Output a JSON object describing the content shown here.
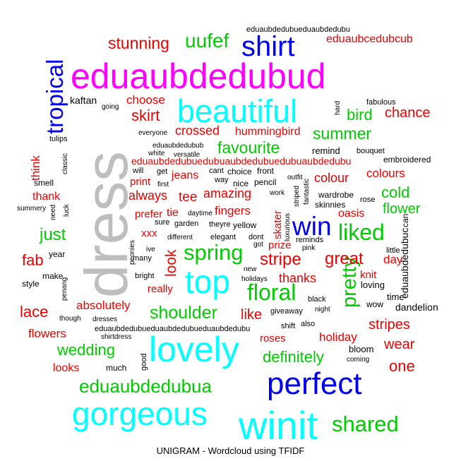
{
  "caption": "UNIGRAM - Wordcloud using TFIDF",
  "colors": {
    "gray": "#bebebe",
    "blue": "#0000ee",
    "magenta": "#ff00ff",
    "cyan": "#00ffff",
    "green": "#00cd00",
    "red": "#ee0000",
    "black": "#000000"
  },
  "chart_data": {
    "type": "wordcloud",
    "title": "UNIGRAM - Wordcloud using TFIDF",
    "words": [
      {
        "text": "dress",
        "tier": "xxl",
        "color": "gray"
      },
      {
        "text": "eduaubdedubud",
        "tier": "xl",
        "color": "magenta"
      },
      {
        "text": "winit",
        "tier": "xl",
        "color": "cyan"
      },
      {
        "text": "lovely",
        "tier": "xl",
        "color": "cyan"
      },
      {
        "text": "gorgeous",
        "tier": "xl",
        "color": "cyan"
      },
      {
        "text": "beautiful",
        "tier": "l",
        "color": "cyan"
      },
      {
        "text": "top",
        "tier": "l",
        "color": "cyan"
      },
      {
        "text": "perfect",
        "tier": "l",
        "color": "blue"
      },
      {
        "text": "win",
        "tier": "l",
        "color": "blue"
      },
      {
        "text": "shirt",
        "tier": "l",
        "color": "blue"
      },
      {
        "text": "tropical",
        "tier": "m",
        "color": "blue"
      },
      {
        "text": "liked",
        "tier": "m",
        "color": "green"
      },
      {
        "text": "floral",
        "tier": "m",
        "color": "green"
      },
      {
        "text": "spring",
        "tier": "m",
        "color": "green"
      },
      {
        "text": "shared",
        "tier": "m",
        "color": "green"
      },
      {
        "text": "eduaubdedubua",
        "tier": "m",
        "color": "green"
      },
      {
        "text": "pretty",
        "tier": "m",
        "color": "green"
      },
      {
        "text": "shoulder",
        "tier": "m",
        "color": "green"
      },
      {
        "text": "uufef",
        "tier": "m",
        "color": "green"
      },
      {
        "text": "summer",
        "tier": "s",
        "color": "green"
      },
      {
        "text": "favourite",
        "tier": "s",
        "color": "green"
      },
      {
        "text": "bird",
        "tier": "s",
        "color": "green"
      },
      {
        "text": "cold",
        "tier": "s",
        "color": "green"
      },
      {
        "text": "just",
        "tier": "s",
        "color": "green"
      },
      {
        "text": "wedding",
        "tier": "s",
        "color": "green"
      },
      {
        "text": "definitely",
        "tier": "s",
        "color": "green"
      },
      {
        "text": "flower",
        "tier": "s",
        "color": "green"
      },
      {
        "text": "stunning",
        "tier": "s",
        "color": "red"
      },
      {
        "text": "great",
        "tier": "s",
        "color": "red"
      },
      {
        "text": "stripe",
        "tier": "s",
        "color": "red"
      },
      {
        "text": "look",
        "tier": "s",
        "color": "red"
      },
      {
        "text": "fab",
        "tier": "s",
        "color": "red"
      },
      {
        "text": "lace",
        "tier": "s",
        "color": "red"
      },
      {
        "text": "skirt",
        "tier": "s",
        "color": "red"
      },
      {
        "text": "chance",
        "tier": "s",
        "color": "red"
      },
      {
        "text": "one",
        "tier": "s",
        "color": "red"
      },
      {
        "text": "like",
        "tier": "s",
        "color": "red"
      },
      {
        "text": "stripes",
        "tier": "s",
        "color": "red"
      },
      {
        "text": "wear",
        "tier": "s",
        "color": "red"
      },
      {
        "text": "crossed",
        "tier": "xs",
        "color": "red"
      },
      {
        "text": "hummingbird",
        "tier": "xs",
        "color": "red"
      },
      {
        "text": "amazing",
        "tier": "xs",
        "color": "red"
      },
      {
        "text": "colour",
        "tier": "xs",
        "color": "red"
      },
      {
        "text": "colours",
        "tier": "xs",
        "color": "red"
      },
      {
        "text": "fingers",
        "tier": "xs",
        "color": "red"
      },
      {
        "text": "tee",
        "tier": "xs",
        "color": "red"
      },
      {
        "text": "jeans",
        "tier": "xs",
        "color": "red"
      },
      {
        "text": "always",
        "tier": "xs",
        "color": "red"
      },
      {
        "text": "thanks",
        "tier": "xs",
        "color": "red"
      },
      {
        "text": "absolutely",
        "tier": "xs",
        "color": "red"
      },
      {
        "text": "flowers",
        "tier": "xs",
        "color": "red"
      },
      {
        "text": "holiday",
        "tier": "xs",
        "color": "red"
      },
      {
        "text": "roses",
        "tier": "xs",
        "color": "red"
      },
      {
        "text": "oasis",
        "tier": "xs",
        "color": "red"
      },
      {
        "text": "skater",
        "tier": "xs",
        "color": "red"
      },
      {
        "text": "choose",
        "tier": "xs",
        "color": "red"
      },
      {
        "text": "think",
        "tier": "xs",
        "color": "red"
      },
      {
        "text": "thank",
        "tier": "xs",
        "color": "red"
      },
      {
        "text": "looks",
        "tier": "xs",
        "color": "red"
      },
      {
        "text": "eduaubcedubcub",
        "tier": "xs",
        "color": "red"
      },
      {
        "text": "eduaubdedubuedubuaubdedubuedubuaubdedubu",
        "tier": "xs",
        "color": "red"
      },
      {
        "text": "print",
        "tier": "xs",
        "color": "red"
      },
      {
        "text": "prefer",
        "tier": "xs",
        "color": "red"
      },
      {
        "text": "tie",
        "tier": "xs",
        "color": "red"
      },
      {
        "text": "xxx",
        "tier": "xs",
        "color": "red"
      },
      {
        "text": "really",
        "tier": "xs",
        "color": "red"
      },
      {
        "text": "prize",
        "tier": "xs",
        "color": "red"
      },
      {
        "text": "day",
        "tier": "xs",
        "color": "red"
      },
      {
        "text": "knit",
        "tier": "xs",
        "color": "red"
      },
      {
        "text": "eduaubdedubuc",
        "tier": "xs",
        "color": "black"
      },
      {
        "text": "dandelion",
        "tier": "xs",
        "color": "black"
      },
      {
        "text": "kaftan",
        "tier": "xs",
        "color": "black"
      },
      {
        "text": "embroidered",
        "tier": "xxs",
        "color": "black"
      },
      {
        "text": "eduaubdedubueduaubdedubu",
        "tier": "xxs",
        "color": "black"
      },
      {
        "text": "eduaubdedubueduaubdedubueduaubdedubu",
        "tier": "xxs",
        "color": "black"
      },
      {
        "text": "remind",
        "tier": "xxs",
        "color": "black"
      },
      {
        "text": "bouquet",
        "tier": "xxs",
        "color": "black"
      },
      {
        "text": "fabulous",
        "tier": "xxs",
        "color": "black"
      },
      {
        "text": "hard",
        "tier": "xxs",
        "color": "black"
      },
      {
        "text": "going",
        "tier": "xxs",
        "color": "black"
      },
      {
        "text": "tulips",
        "tier": "xxs",
        "color": "black"
      },
      {
        "text": "everyone",
        "tier": "xxs",
        "color": "black"
      },
      {
        "text": "eduaubdedubub",
        "tier": "xxs",
        "color": "black"
      },
      {
        "text": "white",
        "tier": "xxs",
        "color": "black"
      },
      {
        "text": "versatile",
        "tier": "xxs",
        "color": "black"
      },
      {
        "text": "classic",
        "tier": "xxs",
        "color": "black"
      },
      {
        "text": "will",
        "tier": "xxs",
        "color": "black"
      },
      {
        "text": "get",
        "tier": "xxs",
        "color": "black"
      },
      {
        "text": "cant",
        "tier": "xxs",
        "color": "black"
      },
      {
        "text": "choice",
        "tier": "xxs",
        "color": "black"
      },
      {
        "text": "front",
        "tier": "xxs",
        "color": "black"
      },
      {
        "text": "outfit",
        "tier": "xxs",
        "color": "black"
      },
      {
        "text": "smell",
        "tier": "xxs",
        "color": "black"
      },
      {
        "text": "way",
        "tier": "xxs",
        "color": "black"
      },
      {
        "text": "nice",
        "tier": "xxs",
        "color": "black"
      },
      {
        "text": "pencil",
        "tier": "xxs",
        "color": "black"
      },
      {
        "text": "fantastic",
        "tier": "xxs",
        "color": "black"
      },
      {
        "text": "sure",
        "tier": "xxs",
        "color": "black"
      },
      {
        "text": "first",
        "tier": "xxs",
        "color": "black"
      },
      {
        "text": "work",
        "tier": "xxs",
        "color": "black"
      },
      {
        "text": "wardrobe",
        "tier": "xxs",
        "color": "black"
      },
      {
        "text": "rose",
        "tier": "xxs",
        "color": "black"
      },
      {
        "text": "summery",
        "tier": "xxs",
        "color": "black"
      },
      {
        "text": "need",
        "tier": "xxs",
        "color": "black"
      },
      {
        "text": "luck",
        "tier": "xxs",
        "color": "black"
      },
      {
        "text": "daytime",
        "tier": "xxs",
        "color": "black"
      },
      {
        "text": "striped",
        "tier": "xxs",
        "color": "black"
      },
      {
        "text": "skinnies",
        "tier": "xxs",
        "color": "black"
      },
      {
        "text": "can",
        "tier": "xxs",
        "color": "black"
      },
      {
        "text": "garden",
        "tier": "xxs",
        "color": "black"
      },
      {
        "text": "theyre",
        "tier": "xxs",
        "color": "black"
      },
      {
        "text": "yellow",
        "tier": "xxs",
        "color": "black"
      },
      {
        "text": "luxurious",
        "tier": "xxs",
        "color": "black"
      },
      {
        "text": "different",
        "tier": "xxs",
        "color": "black"
      },
      {
        "text": "elegant",
        "tier": "xxs",
        "color": "black"
      },
      {
        "text": "dont",
        "tier": "xxs",
        "color": "black"
      },
      {
        "text": "reminds",
        "tier": "xxs",
        "color": "black"
      },
      {
        "text": "peonies",
        "tier": "xxs",
        "color": "black"
      },
      {
        "text": "ive",
        "tier": "xxs",
        "color": "black"
      },
      {
        "text": "got",
        "tier": "xxs",
        "color": "black"
      },
      {
        "text": "pink",
        "tier": "xxs",
        "color": "black"
      },
      {
        "text": "little",
        "tier": "xxs",
        "color": "black"
      },
      {
        "text": "year",
        "tier": "xxs",
        "color": "black"
      },
      {
        "text": "many",
        "tier": "xxs",
        "color": "black"
      },
      {
        "text": "make",
        "tier": "xxs",
        "color": "black"
      },
      {
        "text": "bright",
        "tier": "xxs",
        "color": "black"
      },
      {
        "text": "new",
        "tier": "xxs",
        "color": "black"
      },
      {
        "text": "holidays",
        "tier": "xxs",
        "color": "black"
      },
      {
        "text": "style",
        "tier": "xxs",
        "color": "black"
      },
      {
        "text": "penang",
        "tier": "xxs",
        "color": "black"
      },
      {
        "text": "black",
        "tier": "xxs",
        "color": "black"
      },
      {
        "text": "loving",
        "tier": "xxs",
        "color": "black"
      },
      {
        "text": "time",
        "tier": "xxs",
        "color": "black"
      },
      {
        "text": "wow",
        "tier": "xxs",
        "color": "black"
      },
      {
        "text": "giveaway",
        "tier": "xxs",
        "color": "black"
      },
      {
        "text": "night",
        "tier": "xxs",
        "color": "black"
      },
      {
        "text": "though",
        "tier": "xxs",
        "color": "black"
      },
      {
        "text": "dresses",
        "tier": "xxs",
        "color": "black"
      },
      {
        "text": "shirtdress",
        "tier": "xxs",
        "color": "black"
      },
      {
        "text": "shift",
        "tier": "xxs",
        "color": "black"
      },
      {
        "text": "also",
        "tier": "xxs",
        "color": "black"
      },
      {
        "text": "much",
        "tier": "xxs",
        "color": "black"
      },
      {
        "text": "good",
        "tier": "xxs",
        "color": "black"
      },
      {
        "text": "bloom",
        "tier": "xxs",
        "color": "black"
      },
      {
        "text": "coming",
        "tier": "xxs",
        "color": "black"
      }
    ]
  }
}
